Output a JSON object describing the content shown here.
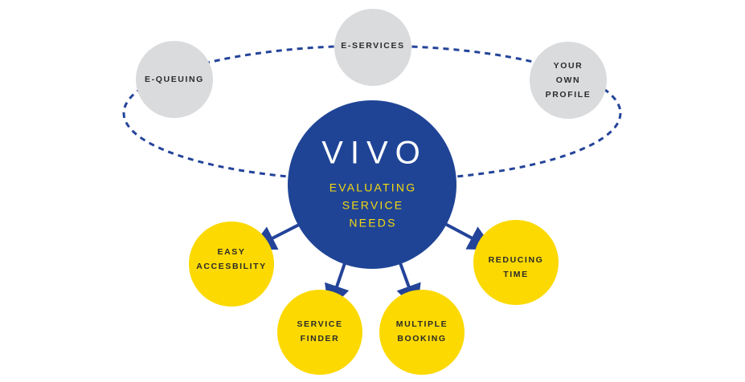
{
  "hub": {
    "title": "VIVO",
    "subtitle_lines": [
      "EVALUATING",
      "SERVICE",
      "NEEDS"
    ]
  },
  "orbit_nodes": [
    {
      "id": "e-queuing",
      "lines": [
        "E-QUEUING"
      ]
    },
    {
      "id": "e-services",
      "lines": [
        "E-SERVICES"
      ]
    },
    {
      "id": "your-own-profile",
      "lines": [
        "YOUR",
        "OWN",
        "PROFILE"
      ]
    }
  ],
  "benefit_nodes": [
    {
      "id": "easy-accesibility",
      "lines": [
        "EASY",
        "ACCESBILITY"
      ]
    },
    {
      "id": "service-finder",
      "lines": [
        "SERVICE",
        "FINDER"
      ]
    },
    {
      "id": "multiple-booking",
      "lines": [
        "MULTIPLE",
        "BOOKING"
      ]
    },
    {
      "id": "reducing-time",
      "lines": [
        "REDUCING",
        "TIME"
      ]
    }
  ],
  "colors": {
    "hub": "#1f4496",
    "hub_title": "#ffffff",
    "hub_subtitle": "#f5d90f",
    "orbit_node": "#dadbdd",
    "benefit_node": "#fcd900",
    "connector": "#24449a",
    "orbit_path": "#24449a"
  }
}
